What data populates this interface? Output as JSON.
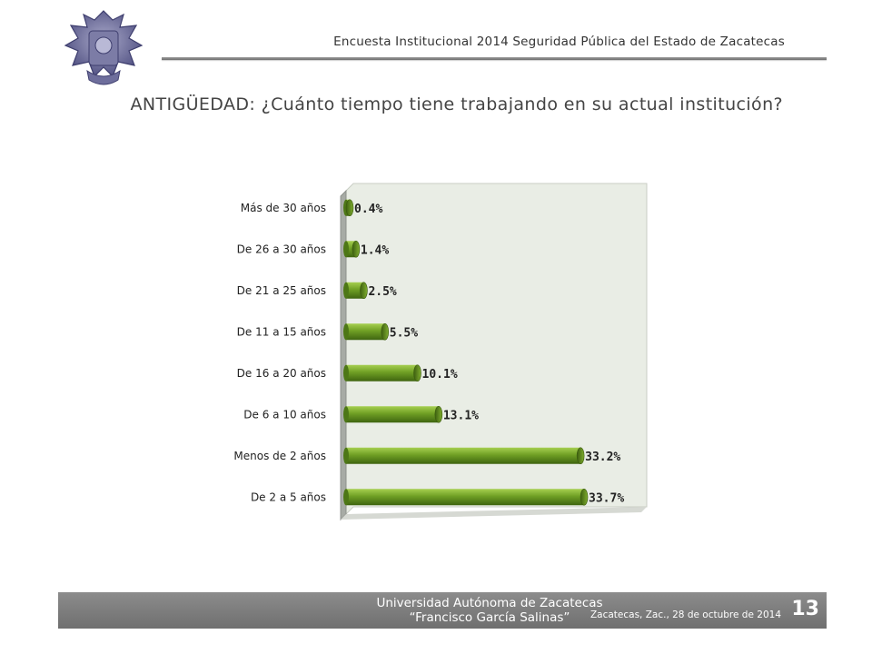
{
  "header": {
    "survey_title": "Encuesta Institucional 2014 Seguridad Pública del Estado de Zacatecas"
  },
  "question": "ANTIGÜEDAD: ¿Cuánto tiempo tiene trabajando en su actual institución?",
  "chart_data": {
    "type": "bar",
    "orientation": "horizontal",
    "categories": [
      "Más de 30 años",
      "De 26 a 30 años",
      "De 21 a 25 años",
      "De 11 a 15 años",
      "De 16 a 20 años",
      "De 6 a 10 años",
      "Menos de 2 años",
      "De 2 a 5 años"
    ],
    "values": [
      0.4,
      1.4,
      2.5,
      5.5,
      10.1,
      13.1,
      33.2,
      33.7
    ],
    "value_labels": [
      "0.4%",
      "1.4%",
      "2.5%",
      "5.5%",
      "10.1%",
      "13.1%",
      "33.2%",
      "33.7%"
    ],
    "xlim": [
      0,
      40
    ],
    "bar_color": "#6b9a22",
    "grid": false,
    "legend": "none"
  },
  "footer": {
    "university": "Universidad Autónoma de Zacatecas",
    "university_sub": "“Francisco García Salinas”",
    "date": "Zacatecas, Zac., 28 de octubre de 2014",
    "page_number": "13"
  }
}
